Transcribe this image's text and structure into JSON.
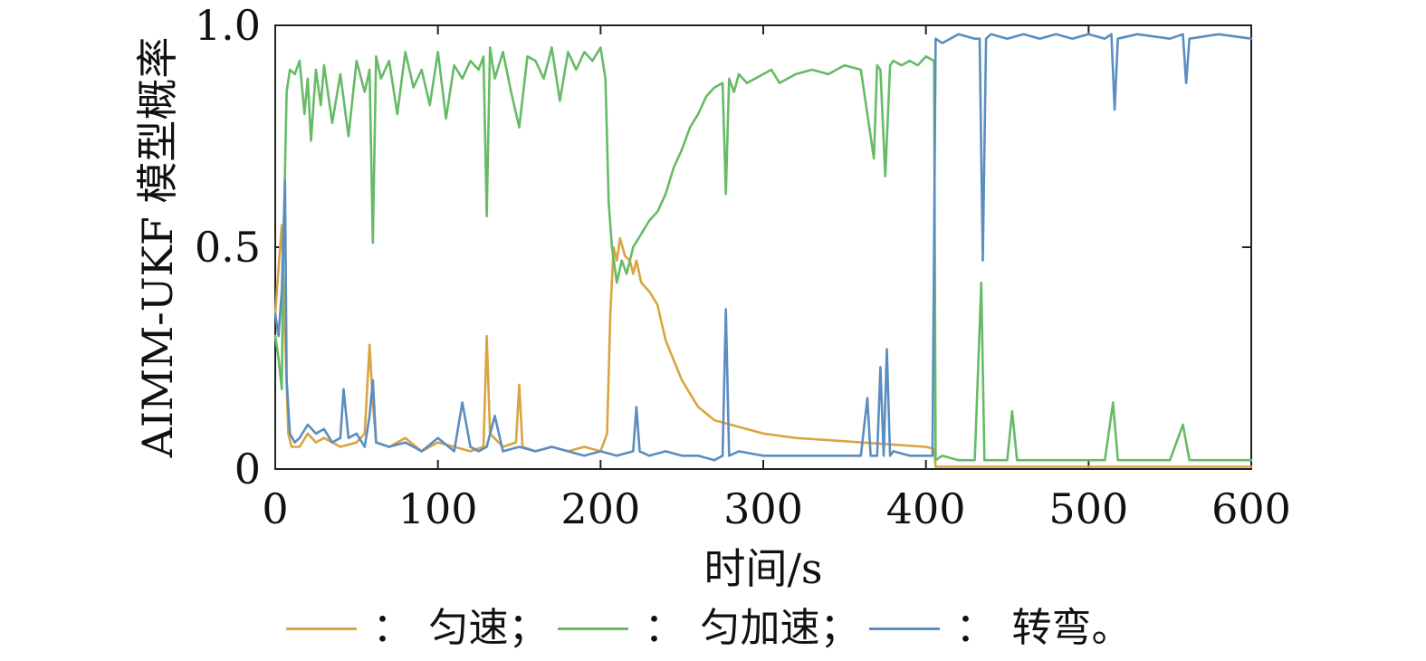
{
  "chart_data": {
    "type": "line",
    "xlabel": "时间/s",
    "ylabel": "AIMM-UKF 模型概率",
    "xlim": [
      0,
      600
    ],
    "ylim": [
      0,
      1.0
    ],
    "xticks": [
      "0",
      "100",
      "200",
      "300",
      "400",
      "500",
      "600"
    ],
    "yticks": [
      "0",
      "0.5",
      "1.0"
    ],
    "grid": false,
    "legend_position": "bottom",
    "colors": {
      "uniform": "#D9A441",
      "accel": "#66BB66",
      "turn": "#5B8DC0"
    },
    "legend": [
      {
        "label": "匀速；",
        "sep": "：",
        "color": "#D9A441"
      },
      {
        "label": "匀加速；",
        "sep": "：",
        "color": "#66BB66"
      },
      {
        "label": "转弯。",
        "sep": "：",
        "color": "#5B8DC0"
      }
    ],
    "series": [
      {
        "name": "匀速",
        "color": "#D9A441",
        "x": [
          0,
          2,
          4,
          6,
          8,
          10,
          15,
          20,
          25,
          30,
          40,
          50,
          55,
          58,
          60,
          62,
          70,
          80,
          90,
          100,
          110,
          120,
          128,
          130,
          132,
          140,
          148,
          150,
          152,
          160,
          170,
          180,
          190,
          200,
          204,
          206,
          208,
          210,
          212,
          215,
          218,
          220,
          222,
          225,
          230,
          235,
          240,
          250,
          260,
          270,
          280,
          290,
          300,
          320,
          340,
          360,
          380,
          400,
          405,
          406,
          420,
          450,
          500,
          550,
          600
        ],
        "y": [
          0.35,
          0.45,
          0.55,
          0.3,
          0.08,
          0.05,
          0.05,
          0.08,
          0.06,
          0.07,
          0.05,
          0.06,
          0.08,
          0.28,
          0.15,
          0.06,
          0.05,
          0.07,
          0.04,
          0.06,
          0.05,
          0.04,
          0.05,
          0.3,
          0.08,
          0.05,
          0.06,
          0.19,
          0.05,
          0.04,
          0.05,
          0.04,
          0.05,
          0.04,
          0.08,
          0.35,
          0.5,
          0.47,
          0.52,
          0.48,
          0.47,
          0.44,
          0.47,
          0.42,
          0.4,
          0.37,
          0.29,
          0.2,
          0.14,
          0.11,
          0.1,
          0.09,
          0.08,
          0.07,
          0.065,
          0.06,
          0.055,
          0.05,
          0.045,
          0.005,
          0.005,
          0.005,
          0.005,
          0.005,
          0.005
        ]
      },
      {
        "name": "匀加速",
        "color": "#66BB66",
        "x": [
          0,
          2,
          4,
          5,
          7,
          9,
          12,
          15,
          18,
          20,
          22,
          25,
          28,
          30,
          35,
          40,
          45,
          50,
          55,
          58,
          60,
          62,
          65,
          70,
          75,
          80,
          85,
          90,
          95,
          100,
          105,
          110,
          115,
          120,
          125,
          128,
          130,
          132,
          135,
          140,
          145,
          150,
          155,
          160,
          165,
          170,
          175,
          180,
          185,
          190,
          195,
          200,
          203,
          205,
          207,
          210,
          213,
          216,
          220,
          225,
          230,
          235,
          240,
          245,
          250,
          255,
          260,
          265,
          270,
          275,
          277,
          279,
          282,
          285,
          290,
          295,
          300,
          305,
          310,
          320,
          330,
          340,
          350,
          360,
          368,
          370,
          372,
          375,
          378,
          380,
          385,
          390,
          395,
          400,
          405,
          406,
          410,
          420,
          430,
          434,
          436,
          440,
          450,
          453,
          456,
          470,
          490,
          510,
          515,
          518,
          530,
          550,
          558,
          562,
          580,
          600
        ],
        "y": [
          0.3,
          0.25,
          0.18,
          0.5,
          0.85,
          0.9,
          0.89,
          0.92,
          0.8,
          0.88,
          0.74,
          0.9,
          0.82,
          0.91,
          0.78,
          0.89,
          0.75,
          0.92,
          0.85,
          0.9,
          0.51,
          0.93,
          0.88,
          0.92,
          0.8,
          0.94,
          0.86,
          0.9,
          0.82,
          0.94,
          0.79,
          0.91,
          0.88,
          0.92,
          0.9,
          0.93,
          0.57,
          0.95,
          0.88,
          0.94,
          0.85,
          0.77,
          0.93,
          0.92,
          0.88,
          0.95,
          0.83,
          0.94,
          0.9,
          0.94,
          0.92,
          0.95,
          0.88,
          0.6,
          0.5,
          0.42,
          0.47,
          0.44,
          0.5,
          0.53,
          0.56,
          0.58,
          0.62,
          0.68,
          0.72,
          0.77,
          0.8,
          0.84,
          0.86,
          0.87,
          0.62,
          0.88,
          0.85,
          0.89,
          0.87,
          0.88,
          0.89,
          0.9,
          0.87,
          0.89,
          0.9,
          0.89,
          0.91,
          0.9,
          0.7,
          0.91,
          0.9,
          0.66,
          0.91,
          0.92,
          0.91,
          0.92,
          0.91,
          0.93,
          0.92,
          0.02,
          0.03,
          0.02,
          0.02,
          0.42,
          0.02,
          0.02,
          0.02,
          0.13,
          0.02,
          0.02,
          0.02,
          0.02,
          0.15,
          0.02,
          0.02,
          0.02,
          0.1,
          0.02,
          0.02,
          0.02
        ]
      },
      {
        "name": "转弯",
        "color": "#5B8DC0",
        "x": [
          0,
          2,
          4,
          6,
          7,
          9,
          12,
          15,
          20,
          25,
          30,
          35,
          40,
          42,
          45,
          50,
          55,
          58,
          60,
          62,
          70,
          80,
          90,
          100,
          110,
          115,
          120,
          125,
          130,
          135,
          140,
          150,
          160,
          170,
          180,
          190,
          200,
          210,
          220,
          222,
          224,
          230,
          240,
          250,
          260,
          270,
          275,
          277,
          279,
          285,
          300,
          320,
          340,
          360,
          364,
          366,
          370,
          372,
          374,
          376,
          378,
          380,
          390,
          400,
          404,
          406,
          410,
          420,
          430,
          433,
          435,
          437,
          440,
          450,
          460,
          470,
          480,
          490,
          500,
          510,
          514,
          516,
          518,
          530,
          550,
          558,
          560,
          562,
          580,
          600
        ],
        "y": [
          0.35,
          0.3,
          0.4,
          0.65,
          0.2,
          0.08,
          0.06,
          0.07,
          0.1,
          0.08,
          0.09,
          0.06,
          0.07,
          0.18,
          0.07,
          0.08,
          0.05,
          0.12,
          0.2,
          0.06,
          0.05,
          0.06,
          0.04,
          0.07,
          0.04,
          0.15,
          0.05,
          0.04,
          0.05,
          0.12,
          0.04,
          0.05,
          0.04,
          0.05,
          0.04,
          0.03,
          0.04,
          0.03,
          0.04,
          0.14,
          0.04,
          0.03,
          0.04,
          0.03,
          0.03,
          0.02,
          0.03,
          0.36,
          0.03,
          0.04,
          0.03,
          0.03,
          0.03,
          0.03,
          0.16,
          0.03,
          0.03,
          0.23,
          0.03,
          0.27,
          0.03,
          0.04,
          0.03,
          0.03,
          0.03,
          0.97,
          0.96,
          0.98,
          0.97,
          0.97,
          0.47,
          0.97,
          0.98,
          0.97,
          0.98,
          0.97,
          0.98,
          0.97,
          0.98,
          0.97,
          0.98,
          0.81,
          0.97,
          0.98,
          0.97,
          0.98,
          0.87,
          0.97,
          0.98,
          0.97
        ]
      }
    ]
  }
}
